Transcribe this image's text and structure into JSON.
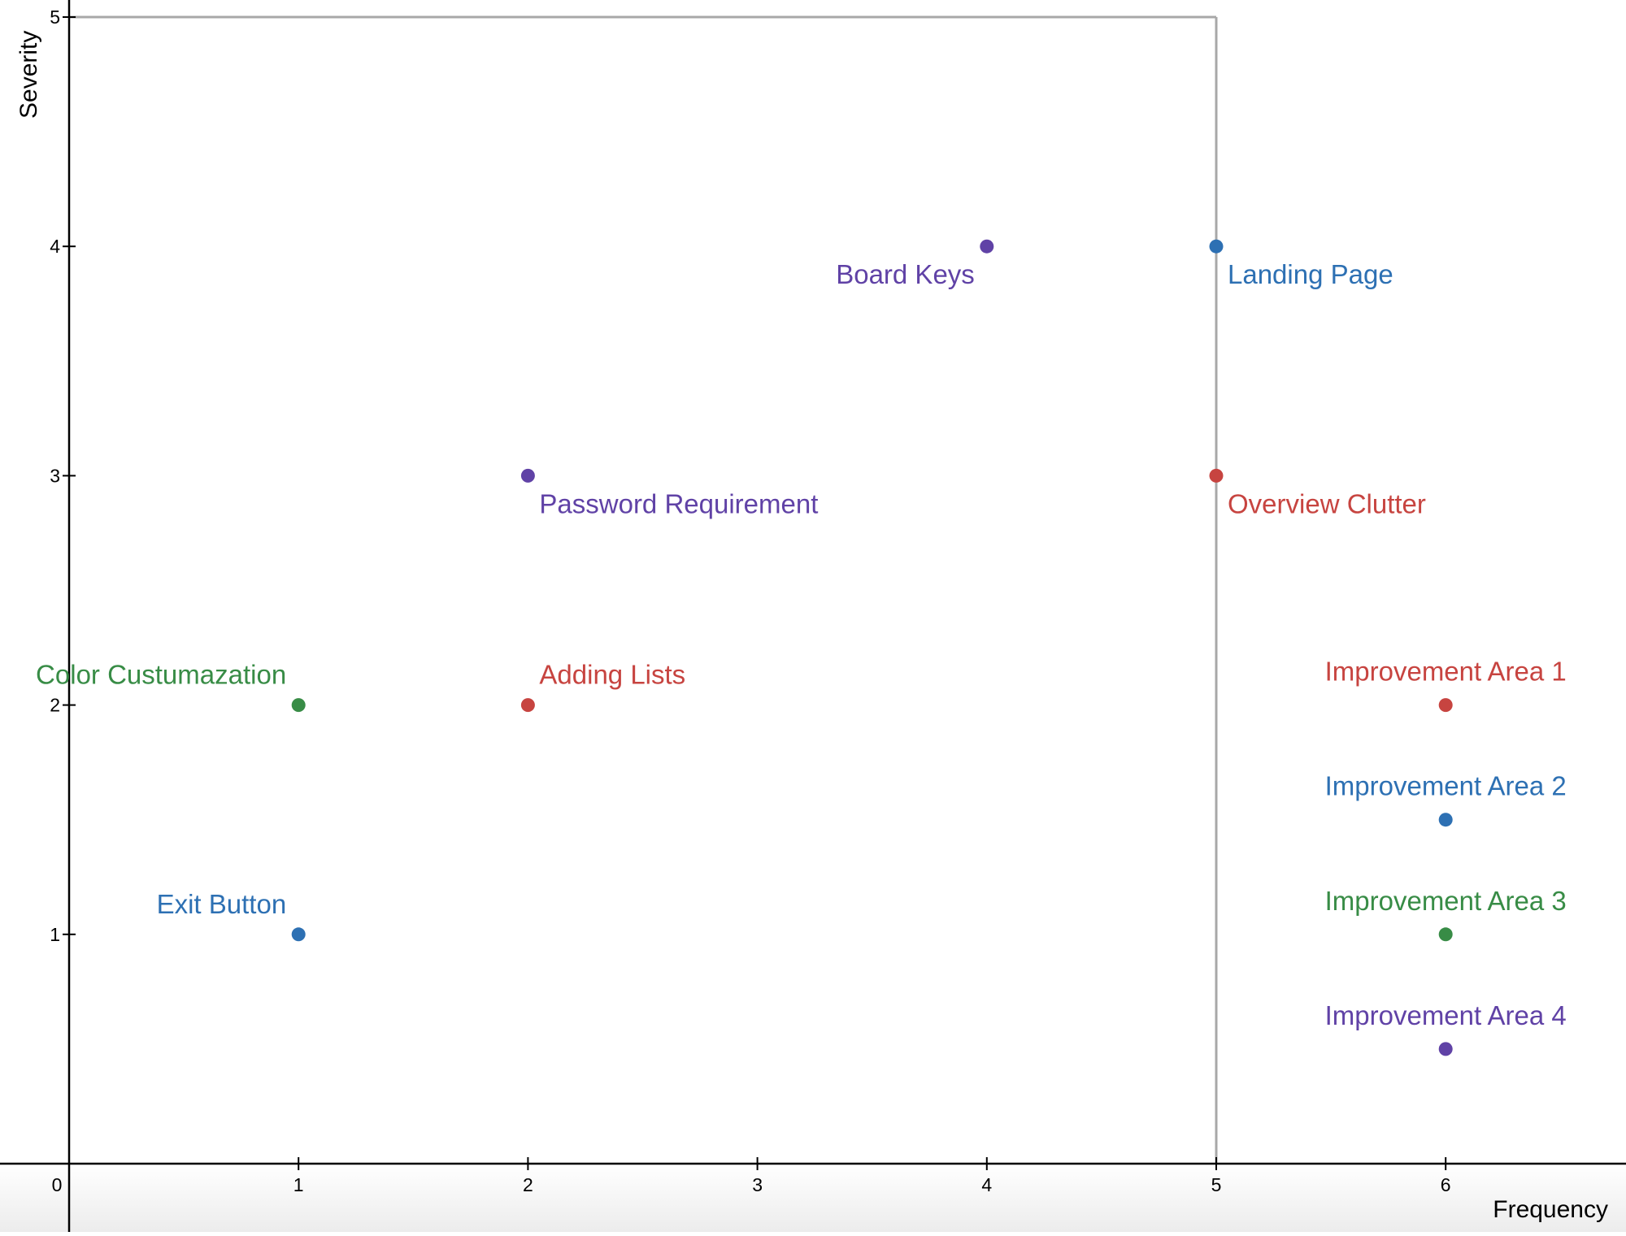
{
  "chart_data": {
    "type": "scatter",
    "xlabel": "Frequency",
    "ylabel": "Severity",
    "xlim": [
      0,
      7
    ],
    "ylim": [
      0,
      5
    ],
    "x_ticks": [
      0,
      1,
      2,
      3,
      4,
      5,
      6
    ],
    "y_ticks": [
      1,
      2,
      3,
      4,
      5
    ],
    "grid": false,
    "colors": {
      "red": "#c74440",
      "blue": "#2d70b3",
      "green": "#388c46",
      "purple": "#6042a6",
      "boundary": "#a8a8a8",
      "axis": "#000000"
    },
    "boundary_box": {
      "x": [
        0,
        5
      ],
      "y": [
        0,
        5
      ]
    },
    "points": [
      {
        "label": "Board Keys",
        "x": 4,
        "y": 4,
        "color": "purple",
        "label_position": "below-left"
      },
      {
        "label": "Landing Page",
        "x": 5,
        "y": 4,
        "color": "blue",
        "label_position": "below-right"
      },
      {
        "label": "Password Requirement",
        "x": 2,
        "y": 3,
        "color": "purple",
        "label_position": "below-right"
      },
      {
        "label": "Overview Clutter",
        "x": 5,
        "y": 3,
        "color": "red",
        "label_position": "below-right"
      },
      {
        "label": "Color Custumazation",
        "x": 1,
        "y": 2,
        "color": "green",
        "label_position": "above-left"
      },
      {
        "label": "Adding Lists",
        "x": 2,
        "y": 2,
        "color": "red",
        "label_position": "above-right"
      },
      {
        "label": "Exit Button",
        "x": 1,
        "y": 1,
        "color": "blue",
        "label_position": "above-left"
      },
      {
        "label": "Improvement Area 1",
        "x": 6,
        "y": 2,
        "color": "red",
        "label_position": "above"
      },
      {
        "label": "Improvement Area 2",
        "x": 6,
        "y": 1.5,
        "color": "blue",
        "label_position": "above"
      },
      {
        "label": "Improvement Area 3",
        "x": 6,
        "y": 1,
        "color": "green",
        "label_position": "above"
      },
      {
        "label": "Improvement Area 4",
        "x": 6,
        "y": 0.5,
        "color": "purple",
        "label_position": "above"
      }
    ]
  }
}
